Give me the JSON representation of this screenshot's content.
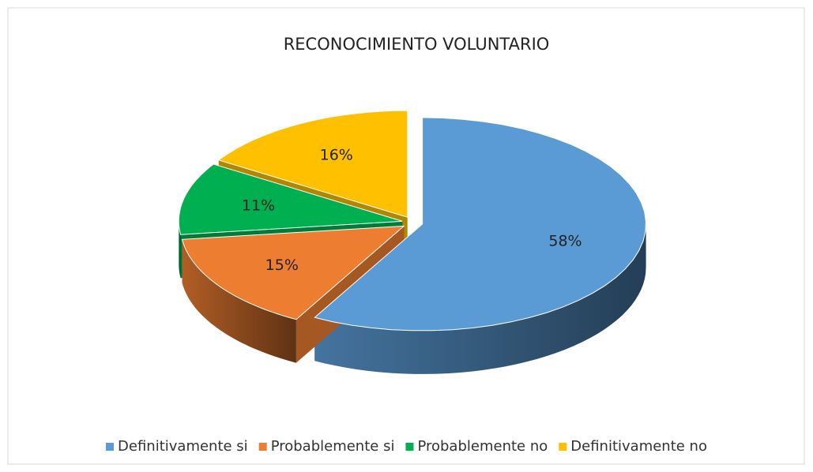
{
  "chart_data": {
    "type": "pie",
    "title": "RECONOCIMIENTO VOLUNTARIO",
    "categories": [
      "Definitivamente si",
      "Probablemente si",
      "Probablemente no",
      "Definitivamente no"
    ],
    "values": [
      58,
      15,
      11,
      16
    ],
    "value_labels": [
      "58%",
      "15%",
      "11%",
      "16%"
    ],
    "colors": [
      "#5b9bd5",
      "#ed7d31",
      "#00b050",
      "#ffc000"
    ],
    "legend": "bottom"
  }
}
